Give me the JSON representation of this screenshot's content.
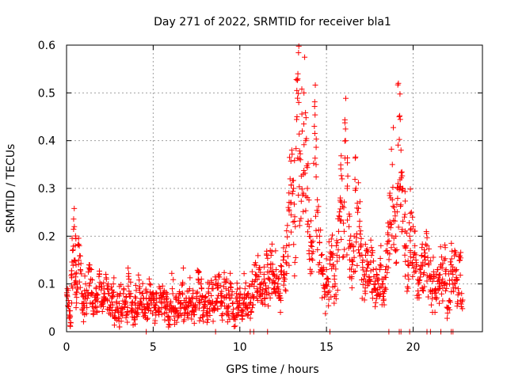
{
  "chart_data": {
    "type": "scatter",
    "title": "Day 271 of 2022, SRMTID for receiver bla1",
    "xlabel": "GPS time / hours",
    "ylabel": "SRMTID / TECUs",
    "xlim": [
      0,
      24
    ],
    "ylim": [
      0,
      0.6
    ],
    "xticks": [
      0,
      5,
      10,
      15,
      20
    ],
    "xtick_labels": [
      "0",
      "5",
      "10",
      "15",
      "20"
    ],
    "yticks": [
      0,
      0.1,
      0.2,
      0.3,
      0.4,
      0.5,
      0.6
    ],
    "ytick_labels": [
      "0",
      "0.1",
      "0.2",
      "0.3",
      "0.4",
      "0.5",
      "0.6"
    ],
    "grid": true,
    "marker": "plus",
    "color": "#ff0000",
    "series": [
      {
        "name": "SRMTID",
        "points": [
          [
            0.05,
            0.09
          ],
          [
            0.15,
            0.06
          ],
          [
            0.2,
            0.03
          ],
          [
            0.3,
            0.12
          ],
          [
            0.35,
            0.17
          ],
          [
            0.45,
            0.22
          ],
          [
            0.5,
            0.18
          ],
          [
            0.55,
            0.14
          ],
          [
            0.6,
            0.1
          ],
          [
            0.7,
            0.15
          ],
          [
            0.8,
            0.13
          ],
          [
            0.9,
            0.08
          ],
          [
            1.0,
            0.06
          ],
          [
            1.1,
            0.1
          ],
          [
            1.2,
            0.07
          ],
          [
            1.3,
            0.14
          ],
          [
            1.4,
            0.11
          ],
          [
            1.5,
            0.08
          ],
          [
            1.6,
            0.05
          ],
          [
            1.7,
            0.09
          ],
          [
            1.8,
            0.07
          ],
          [
            1.9,
            0.12
          ],
          [
            2.0,
            0.1
          ],
          [
            2.1,
            0.06
          ],
          [
            2.2,
            0.08
          ],
          [
            2.3,
            0.11
          ],
          [
            2.4,
            0.09
          ],
          [
            2.5,
            0.05
          ],
          [
            2.6,
            0.07
          ],
          [
            2.7,
            0.1
          ],
          [
            2.8,
            0.04
          ],
          [
            2.9,
            0.06
          ],
          [
            3.0,
            0.03
          ],
          [
            3.1,
            0.08
          ],
          [
            3.2,
            0.05
          ],
          [
            3.3,
            0.09
          ],
          [
            3.4,
            0.06
          ],
          [
            3.5,
            0.04
          ],
          [
            3.6,
            0.11
          ],
          [
            3.7,
            0.08
          ],
          [
            3.8,
            0.06
          ],
          [
            3.9,
            0.03
          ],
          [
            4.0,
            0.07
          ],
          [
            4.1,
            0.05
          ],
          [
            4.2,
            0.09
          ],
          [
            4.3,
            0.06
          ],
          [
            4.4,
            0.08
          ],
          [
            4.5,
            0.04
          ],
          [
            4.6,
            0.07
          ],
          [
            4.7,
            0.05
          ],
          [
            4.8,
            0.1
          ],
          [
            4.9,
            0.06
          ],
          [
            5.0,
            0.08
          ],
          [
            5.1,
            0.05
          ],
          [
            5.2,
            0.07
          ],
          [
            5.3,
            0.04
          ],
          [
            5.4,
            0.09
          ],
          [
            5.5,
            0.06
          ],
          [
            5.6,
            0.08
          ],
          [
            5.7,
            0.05
          ],
          [
            5.8,
            0.07
          ],
          [
            5.9,
            0.03
          ],
          [
            6.0,
            0.06
          ],
          [
            6.1,
            0.09
          ],
          [
            6.2,
            0.05
          ],
          [
            6.3,
            0.07
          ],
          [
            6.4,
            0.04
          ],
          [
            6.5,
            0.08
          ],
          [
            6.6,
            0.06
          ],
          [
            6.7,
            0.1
          ],
          [
            6.8,
            0.05
          ],
          [
            6.9,
            0.07
          ],
          [
            7.0,
            0.04
          ],
          [
            7.1,
            0.09
          ],
          [
            7.2,
            0.06
          ],
          [
            7.3,
            0.08
          ],
          [
            7.4,
            0.05
          ],
          [
            7.5,
            0.07
          ],
          [
            7.6,
            0.11
          ],
          [
            7.7,
            0.06
          ],
          [
            7.8,
            0.09
          ],
          [
            7.9,
            0.05
          ],
          [
            8.0,
            0.07
          ],
          [
            8.1,
            0.04
          ],
          [
            8.2,
            0.08
          ],
          [
            8.3,
            0.06
          ],
          [
            8.4,
            0.09
          ],
          [
            8.5,
            0.05
          ],
          [
            8.6,
            0.1
          ],
          [
            8.7,
            0.07
          ],
          [
            8.8,
            0.12
          ],
          [
            8.9,
            0.08
          ],
          [
            9.0,
            0.06
          ],
          [
            9.1,
            0.11
          ],
          [
            9.2,
            0.09
          ],
          [
            9.3,
            0.05
          ],
          [
            9.4,
            0.07
          ],
          [
            9.5,
            0.1
          ],
          [
            9.6,
            0.06
          ],
          [
            9.7,
            0.03
          ],
          [
            9.8,
            0.08
          ],
          [
            9.9,
            0.05
          ],
          [
            10.0,
            0.07
          ],
          [
            10.1,
            0.04
          ],
          [
            10.2,
            0.06
          ],
          [
            10.3,
            0.09
          ],
          [
            10.4,
            0.05
          ],
          [
            10.5,
            0.08
          ],
          [
            10.6,
            0.06
          ],
          [
            10.7,
            0.1
          ],
          [
            10.8,
            0.07
          ],
          [
            10.9,
            0.12
          ],
          [
            11.0,
            0.09
          ],
          [
            11.1,
            0.13
          ],
          [
            11.2,
            0.1
          ],
          [
            11.3,
            0.08
          ],
          [
            11.4,
            0.11
          ],
          [
            11.5,
            0.09
          ],
          [
            11.6,
            0.14
          ],
          [
            11.7,
            0.11
          ],
          [
            11.8,
            0.16
          ],
          [
            11.9,
            0.12
          ],
          [
            12.0,
            0.09
          ],
          [
            12.1,
            0.13
          ],
          [
            12.2,
            0.1
          ],
          [
            12.3,
            0.07
          ],
          [
            12.4,
            0.12
          ],
          [
            12.5,
            0.15
          ],
          [
            12.6,
            0.11
          ],
          [
            12.7,
            0.18
          ],
          [
            12.8,
            0.26
          ],
          [
            12.9,
            0.32
          ],
          [
            13.0,
            0.38
          ],
          [
            13.1,
            0.3
          ],
          [
            13.2,
            0.22
          ],
          [
            13.3,
            0.45
          ],
          [
            13.35,
            0.54
          ],
          [
            13.4,
            0.48
          ],
          [
            13.5,
            0.36
          ],
          [
            13.6,
            0.42
          ],
          [
            13.7,
            0.5
          ],
          [
            13.8,
            0.4
          ],
          [
            13.9,
            0.3
          ],
          [
            14.0,
            0.22
          ],
          [
            14.1,
            0.18
          ],
          [
            14.2,
            0.15
          ],
          [
            14.3,
            0.43
          ],
          [
            14.4,
            0.35
          ],
          [
            14.5,
            0.25
          ],
          [
            14.6,
            0.2
          ],
          [
            14.7,
            0.16
          ],
          [
            14.8,
            0.12
          ],
          [
            14.9,
            0.09
          ],
          [
            15.0,
            0.13
          ],
          [
            15.1,
            0.11
          ],
          [
            15.2,
            0.15
          ],
          [
            15.3,
            0.18
          ],
          [
            15.4,
            0.14
          ],
          [
            15.5,
            0.1
          ],
          [
            15.6,
            0.16
          ],
          [
            15.7,
            0.21
          ],
          [
            15.8,
            0.28
          ],
          [
            15.9,
            0.32
          ],
          [
            16.0,
            0.26
          ],
          [
            16.1,
            0.4
          ],
          [
            16.2,
            0.3
          ],
          [
            16.3,
            0.22
          ],
          [
            16.4,
            0.18
          ],
          [
            16.5,
            0.14
          ],
          [
            16.6,
            0.2
          ],
          [
            16.7,
            0.3
          ],
          [
            16.8,
            0.25
          ],
          [
            16.9,
            0.22
          ],
          [
            17.0,
            0.18
          ],
          [
            17.1,
            0.15
          ],
          [
            17.2,
            0.12
          ],
          [
            17.3,
            0.17
          ],
          [
            17.4,
            0.14
          ],
          [
            17.5,
            0.11
          ],
          [
            17.6,
            0.16
          ],
          [
            17.7,
            0.13
          ],
          [
            17.8,
            0.09
          ],
          [
            17.9,
            0.12
          ],
          [
            18.0,
            0.1
          ],
          [
            18.1,
            0.14
          ],
          [
            18.2,
            0.11
          ],
          [
            18.3,
            0.08
          ],
          [
            18.4,
            0.13
          ],
          [
            18.5,
            0.17
          ],
          [
            18.6,
            0.22
          ],
          [
            18.7,
            0.28
          ],
          [
            18.8,
            0.35
          ],
          [
            18.9,
            0.26
          ],
          [
            19.0,
            0.2
          ],
          [
            19.1,
            0.3
          ],
          [
            19.15,
            0.52
          ],
          [
            19.2,
            0.45
          ],
          [
            19.3,
            0.38
          ],
          [
            19.4,
            0.3
          ],
          [
            19.5,
            0.24
          ],
          [
            19.6,
            0.18
          ],
          [
            19.7,
            0.14
          ],
          [
            19.8,
            0.2
          ],
          [
            19.9,
            0.25
          ],
          [
            20.0,
            0.22
          ],
          [
            20.1,
            0.18
          ],
          [
            20.2,
            0.14
          ],
          [
            20.3,
            0.1
          ],
          [
            20.4,
            0.13
          ],
          [
            20.5,
            0.16
          ],
          [
            20.6,
            0.12
          ],
          [
            20.7,
            0.15
          ],
          [
            20.8,
            0.18
          ],
          [
            20.9,
            0.14
          ],
          [
            21.0,
            0.11
          ],
          [
            21.1,
            0.08
          ],
          [
            21.2,
            0.12
          ],
          [
            21.3,
            0.09
          ],
          [
            21.4,
            0.13
          ],
          [
            21.5,
            0.1
          ],
          [
            21.6,
            0.14
          ],
          [
            21.7,
            0.11
          ],
          [
            21.8,
            0.15
          ],
          [
            21.9,
            0.13
          ],
          [
            22.0,
            0.05
          ],
          [
            22.1,
            0.1
          ],
          [
            22.2,
            0.14
          ],
          [
            22.3,
            0.12
          ],
          [
            22.4,
            0.17
          ],
          [
            22.5,
            0.13
          ],
          [
            22.6,
            0.09
          ],
          [
            22.7,
            0.15
          ],
          [
            22.8,
            0.08
          ]
        ],
        "zero_points": [
          4.6,
          8.6,
          10.6,
          10.8,
          11.6,
          15.2,
          18.6,
          19.2,
          19.3,
          19.8,
          20.8,
          21.0,
          21.6,
          22.2,
          22.3
        ]
      }
    ]
  }
}
